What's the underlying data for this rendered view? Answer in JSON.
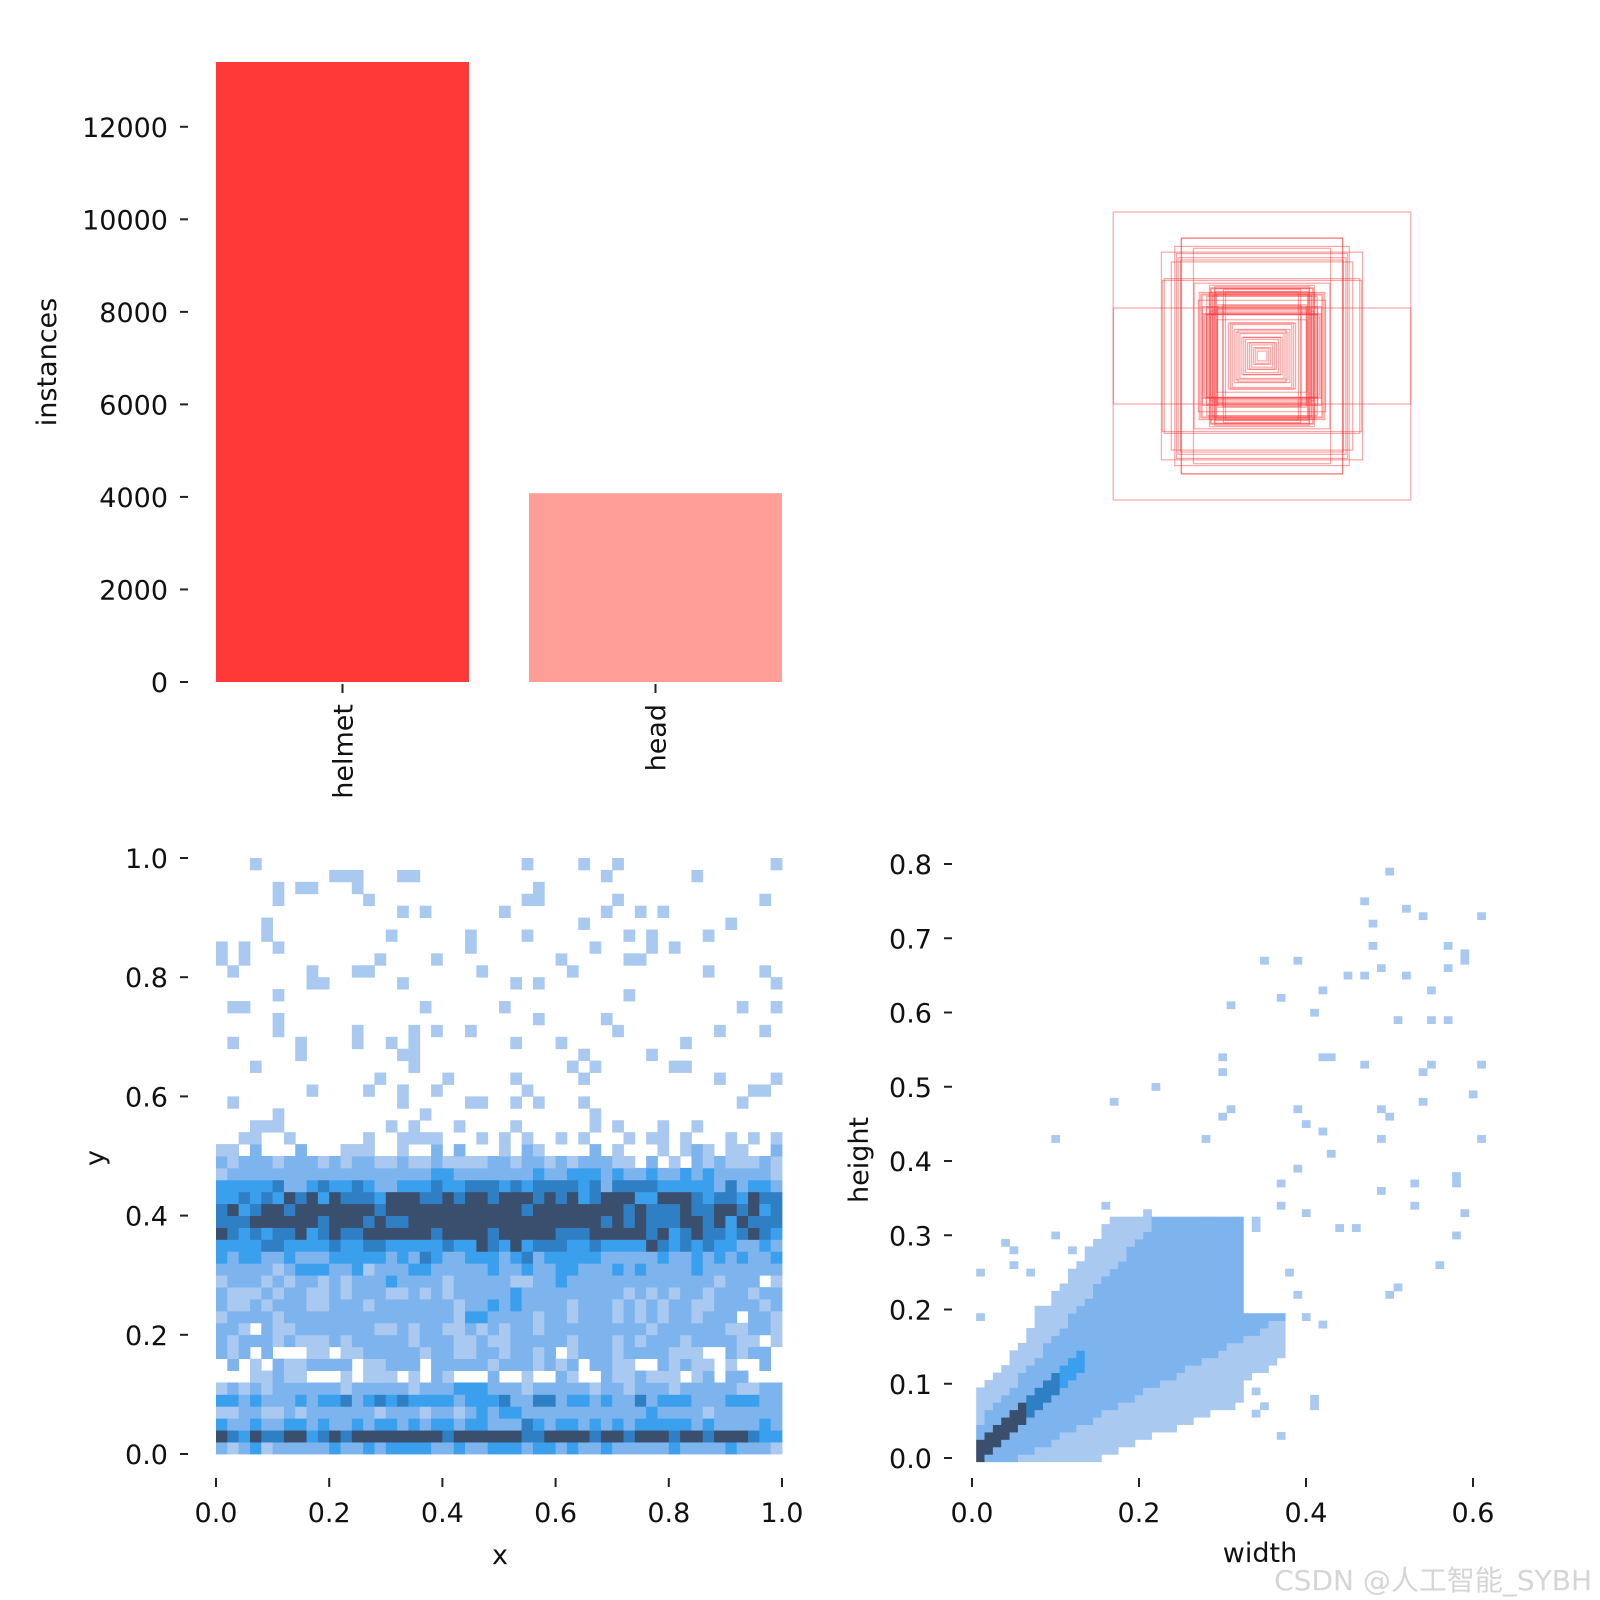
{
  "chart_data": [
    {
      "type": "bar",
      "categories": [
        "helmet",
        "head"
      ],
      "values": [
        13400,
        4080
      ],
      "colors": [
        "#ff3838",
        "#ff9d97"
      ],
      "xlabel": "",
      "ylabel": "instances",
      "ylim": [
        0,
        13400
      ],
      "yticks": [
        "0",
        "2000",
        "4000",
        "6000",
        "8000",
        "10000",
        "12000"
      ],
      "grid": false
    },
    {
      "type": "boxes",
      "description_values": {
        "box_count": 60,
        "max_width": 0.62,
        "max_height": 0.6,
        "color": "#ff3838"
      }
    },
    {
      "type": "heatmap",
      "xlabel": "x",
      "ylabel": "y",
      "xlim": [
        0,
        1
      ],
      "ylim": [
        0,
        1
      ],
      "xticks": [
        "0.0",
        "0.2",
        "0.4",
        "0.6",
        "0.8",
        "1.0"
      ],
      "yticks": [
        "0.0",
        "0.2",
        "0.4",
        "0.6",
        "0.8",
        "1.0"
      ],
      "bins": [
        50,
        50
      ],
      "density_bands": [
        {
          "y_center": 0.03,
          "intensity": 0.95
        },
        {
          "y_center": 0.09,
          "intensity": 0.55
        },
        {
          "y_center": 0.4,
          "intensity": 1.0
        }
      ],
      "colors": [
        "#ffffff",
        "#a9c9f0",
        "#3aa0ee",
        "#3a4f6e"
      ]
    },
    {
      "type": "heatmap",
      "xlabel": "width",
      "ylabel": "height",
      "xlim": [
        0,
        0.68
      ],
      "ylim": [
        0,
        0.82
      ],
      "xticks": [
        "0.0",
        "0.2",
        "0.4",
        "0.6"
      ],
      "yticks": [
        "0.0",
        "0.1",
        "0.2",
        "0.3",
        "0.4",
        "0.5",
        "0.6",
        "0.7",
        "0.8"
      ],
      "ridge": {
        "slope": 1.0,
        "peak_width": 0.04,
        "peak_height": 0.04
      },
      "colors": [
        "#ffffff",
        "#a9c9f0",
        "#3aa0ee",
        "#3a4f6e"
      ]
    }
  ],
  "watermark": "CSDN @人工智能_SYBH"
}
